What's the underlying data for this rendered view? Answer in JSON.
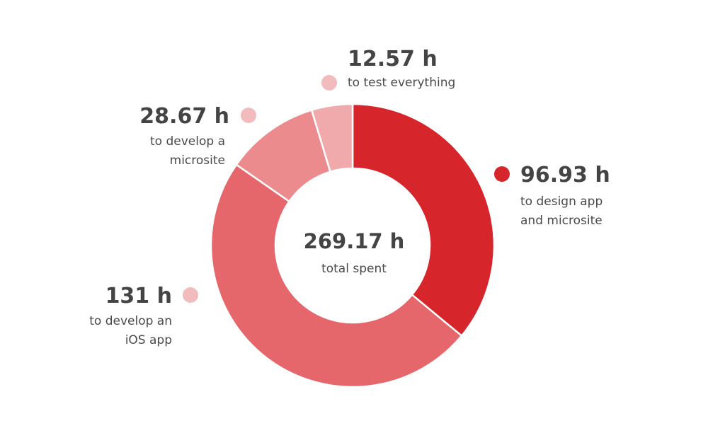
{
  "chart_data": {
    "type": "pie",
    "donut": true,
    "unit": "h",
    "start_at": "top",
    "direction": "clockwise",
    "slices": [
      {
        "value": 96.93,
        "display": "96.93 h",
        "label_lines": [
          "to design app",
          "and microsite"
        ],
        "color": "#d6252b"
      },
      {
        "value": 131,
        "display": "131 h",
        "label_lines": [
          "to develop an",
          "iOS app"
        ],
        "color": "#e5676c"
      },
      {
        "value": 28.67,
        "display": "28.67 h",
        "label_lines": [
          "to develop a",
          "microsite"
        ],
        "color": "#ec8b8e"
      },
      {
        "value": 12.57,
        "display": "12.57 h",
        "label_lines": [
          "to test everything"
        ],
        "color": "#f0aaac"
      }
    ],
    "center": {
      "value": "269.17 h",
      "label": "total spent"
    },
    "legend_dot_colors": [
      "#d6252b",
      "#f2bcbe",
      "#f2bcbe",
      "#f2bcbe"
    ]
  }
}
